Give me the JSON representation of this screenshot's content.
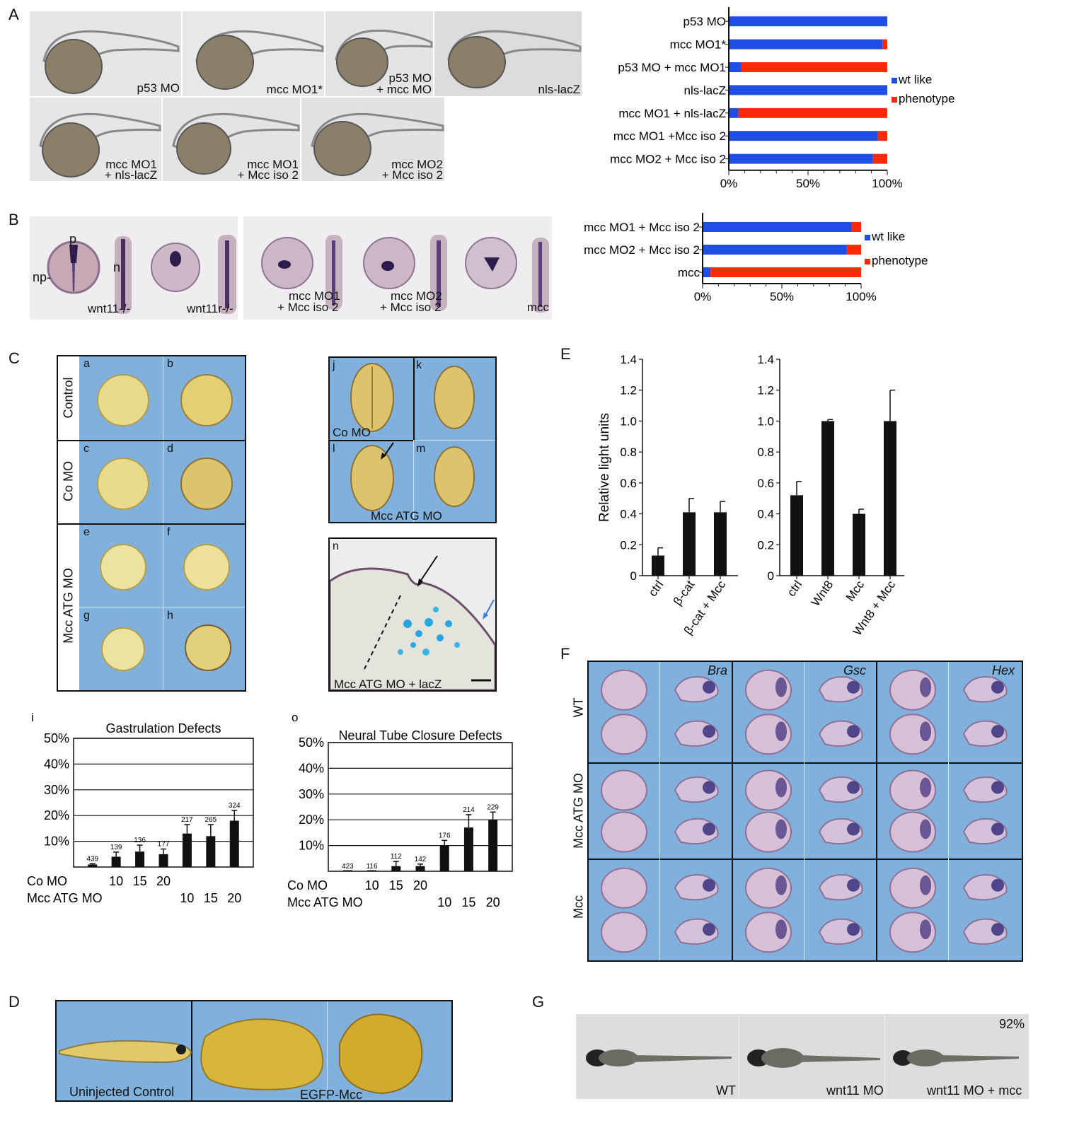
{
  "panelA": {
    "letter": "A",
    "images": [
      {
        "label": "p53 MO"
      },
      {
        "label": "mcc MO1*"
      },
      {
        "line1": "p53 MO",
        "line2": "+ mcc MO"
      },
      {
        "label": "nls-lacZ"
      },
      {
        "line1": "mcc MO1",
        "line2": "+ nls-lacZ"
      },
      {
        "line1": "mcc MO1",
        "line2": "+ Mcc iso 2"
      },
      {
        "line1": "mcc MO2",
        "line2": "+ Mcc iso 2"
      }
    ]
  },
  "panelB": {
    "letter": "B",
    "marks": {
      "p": "p",
      "np": "np-",
      "n": "n"
    },
    "images": [
      {
        "label": "wnt11-/-"
      },
      {
        "label": "wnt11r-/-"
      },
      {
        "line1": "mcc MO1",
        "line2": "+ Mcc iso 2"
      },
      {
        "line1": "mcc MO2",
        "line2": "+ Mcc iso 2"
      },
      {
        "label": "mcc"
      }
    ]
  },
  "panelC": {
    "letter": "C",
    "rows": [
      "Control",
      "Co MO",
      "Mcc ATG MO"
    ],
    "sublabels": [
      "a",
      "b",
      "c",
      "d",
      "e",
      "f",
      "g",
      "h"
    ],
    "right": {
      "j": "j",
      "k": "k",
      "l": "l",
      "m": "m",
      "n": "n",
      "co_mo": "Co MO",
      "mcc_atg": "Mcc ATG MO",
      "lacz": "Mcc ATG MO + lacZ"
    }
  },
  "panelD": {
    "letter": "D",
    "labels": [
      "Uninjected Control",
      "EGFP-Mcc"
    ]
  },
  "panelE": {
    "letter": "E"
  },
  "panelF": {
    "letter": "F",
    "rows": [
      "WT",
      "Mcc ATG MO",
      "Mcc"
    ],
    "genes": [
      "Bra",
      "Gsc",
      "Hex"
    ]
  },
  "panelG": {
    "letter": "G",
    "labels": [
      "WT",
      "wnt11 MO",
      "wnt11 MO + mcc"
    ],
    "percent": "92%"
  },
  "colors": {
    "wt_like": "#1f4ee6",
    "phenotype": "#ff2a0a",
    "blue_bg": "#7fb1dc"
  },
  "chart_data": [
    {
      "id": "A-bar",
      "type": "bar",
      "orientation": "horizontal",
      "stacked": true,
      "categories": [
        "p53 MO",
        "mcc MO1*",
        "p53 MO + mcc MO1",
        "nls-lacZ",
        "mcc MO1 + nls-lacZ",
        "mcc MO1 +Mcc iso 2",
        "mcc MO2 + Mcc iso 2"
      ],
      "series": [
        {
          "name": "wt like",
          "values": [
            100,
            97,
            8,
            100,
            6,
            94,
            91
          ]
        },
        {
          "name": "phenotype",
          "values": [
            0,
            3,
            92,
            0,
            94,
            6,
            9
          ]
        }
      ],
      "xticks": [
        "0%",
        "50%",
        "100%"
      ],
      "xlim": [
        0,
        100
      ],
      "legend": "right"
    },
    {
      "id": "B-bar",
      "type": "bar",
      "orientation": "horizontal",
      "stacked": true,
      "categories": [
        "mcc MO1 + Mcc iso 2",
        "mcc MO2 + Mcc iso 2",
        "mcc"
      ],
      "series": [
        {
          "name": "wt like",
          "values": [
            94,
            91,
            5
          ]
        },
        {
          "name": "phenotype",
          "values": [
            6,
            9,
            95
          ]
        }
      ],
      "xticks": [
        "0%",
        "50%",
        "100%"
      ],
      "xlim": [
        0,
        100
      ],
      "legend": "right"
    },
    {
      "id": "Ci",
      "sublabel": "i",
      "type": "bar",
      "title": "Gastrulation Defects",
      "yticks": [
        "50%",
        "40%",
        "30%",
        "20%",
        "10%"
      ],
      "ylim": [
        0,
        50
      ],
      "values": [
        1,
        4,
        6,
        5,
        13,
        12,
        18
      ],
      "errors": [
        0.3,
        1.8,
        2.5,
        2.0,
        3.5,
        4.5,
        4.0
      ],
      "counts": [
        "439",
        "139",
        "136",
        "177",
        "217",
        "265",
        "324"
      ],
      "row_labels": [
        "Co MO",
        "Mcc ATG MO"
      ],
      "co_mo_doses": [
        "10",
        "15",
        "20"
      ],
      "mcc_doses": [
        "10",
        "15",
        "20"
      ],
      "grid": true
    },
    {
      "id": "Co",
      "sublabel": "o",
      "type": "bar",
      "title": "Neural Tube Closure Defects",
      "yticks": [
        "50%",
        "40%",
        "30%",
        "20%",
        "10%"
      ],
      "ylim": [
        0,
        50
      ],
      "values": [
        0,
        0,
        2,
        2,
        10,
        17,
        20
      ],
      "errors": [
        0,
        0,
        1.8,
        0.8,
        2.0,
        5.0,
        3.0
      ],
      "counts": [
        "423",
        "116",
        "112",
        "142",
        "176",
        "214",
        "229"
      ],
      "row_labels": [
        "Co MO",
        "Mcc ATG MO"
      ],
      "co_mo_doses": [
        "10",
        "15",
        "20"
      ],
      "mcc_doses": [
        "10",
        "15",
        "20"
      ],
      "grid": true
    },
    {
      "id": "E-left",
      "type": "bar",
      "ylabel": "Relative light units",
      "categories": [
        "ctrl",
        "β-cat",
        "β-cat + Mcc"
      ],
      "values": [
        0.13,
        0.41,
        0.41
      ],
      "errors": [
        0.05,
        0.09,
        0.07
      ],
      "yticks": [
        "0",
        "0.2",
        "0.4",
        "0.6",
        "0.8",
        "1.0",
        "1.2",
        "1.4"
      ],
      "ylim": [
        0,
        1.4
      ]
    },
    {
      "id": "E-right",
      "type": "bar",
      "categories": [
        "ctrl",
        "Wnt8",
        "Mcc",
        "Wnt8 + Mcc"
      ],
      "values": [
        0.52,
        1.0,
        0.4,
        1.0
      ],
      "errors": [
        0.09,
        0.01,
        0.03,
        0.2
      ],
      "yticks": [
        "0",
        "0.2",
        "0.4",
        "0.6",
        "0.8",
        "1.0",
        "1.2",
        "1.4"
      ],
      "ylim": [
        0,
        1.4
      ]
    }
  ]
}
